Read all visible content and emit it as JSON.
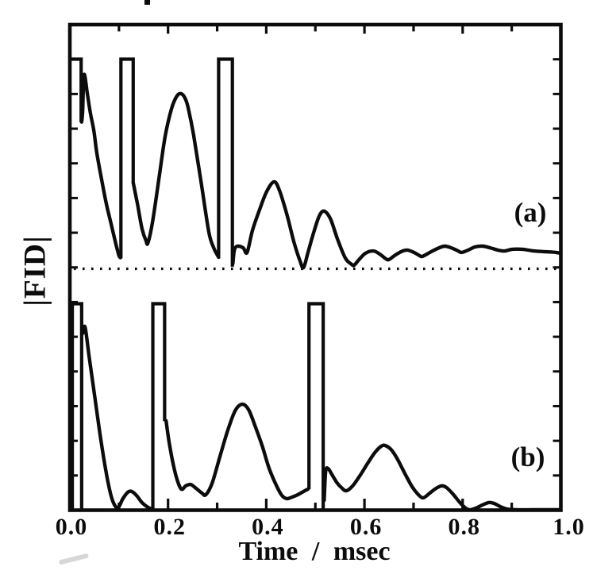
{
  "figure": {
    "kind": "scanned line figure, black ink on white paper",
    "ink_color": "#0c0c0c",
    "paper_color": "#ffffff"
  },
  "chart_data": {
    "type": "line",
    "title": "",
    "xlabel": "Time / msec",
    "ylabel": "|FID|",
    "xlim": [
      0.0,
      1.0
    ],
    "x_ticks_major": [
      0.0,
      0.2,
      0.4,
      0.6,
      0.8,
      1.0
    ],
    "x_ticks_minor": [
      0.1,
      0.3,
      0.5,
      0.7,
      0.9
    ],
    "x_tick_labels": [
      "0.0",
      "0.2",
      "0.4",
      "0.6",
      "0.8",
      "1.0"
    ],
    "y_axis": {
      "labeled": false,
      "divisions": 14
    },
    "grid": false,
    "legend": "none",
    "units": {
      "x": "msec",
      "y": "|FID| magnitude, normalized so pulse rectangles = 1.0"
    },
    "panels": [
      {
        "label": "(a)",
        "baseline": "dotted",
        "pulse_height": 1.0,
        "pulses": [
          {
            "t0": 0.0,
            "t1": 0.023,
            "left_edge_amp": null,
            "right_edge_amp": 0.7
          },
          {
            "t0": 0.104,
            "t1": 0.129,
            "left_edge_amp": 0.05,
            "right_edge_amp": 0.41
          },
          {
            "t0": 0.303,
            "t1": 0.331,
            "left_edge_amp": 0.06,
            "right_edge_amp": 0.01
          }
        ],
        "echo_peaks": [
          {
            "t": 0.227,
            "amp": 0.84
          },
          {
            "t": 0.416,
            "amp": 0.42
          },
          {
            "t": 0.518,
            "amp": 0.28
          }
        ],
        "curve_segments": [
          [
            [
              0.024,
              0.7
            ],
            [
              0.026,
              0.752
            ],
            [
              0.029,
              0.926
            ],
            [
              0.036,
              0.828
            ],
            [
              0.042,
              0.74
            ],
            [
              0.049,
              0.657
            ],
            [
              0.055,
              0.551
            ],
            [
              0.065,
              0.422
            ],
            [
              0.074,
              0.313
            ],
            [
              0.084,
              0.214
            ],
            [
              0.094,
              0.116
            ],
            [
              0.1,
              0.063
            ],
            [
              0.103,
              0.053
            ]
          ],
          [
            [
              0.129,
              0.411
            ],
            [
              0.138,
              0.305
            ],
            [
              0.147,
              0.191
            ],
            [
              0.155,
              0.134
            ],
            [
              0.159,
              0.123
            ],
            [
              0.168,
              0.218
            ],
            [
              0.181,
              0.422
            ],
            [
              0.194,
              0.631
            ],
            [
              0.207,
              0.763
            ],
            [
              0.218,
              0.824
            ],
            [
              0.227,
              0.835
            ],
            [
              0.235,
              0.812
            ],
            [
              0.241,
              0.767
            ],
            [
              0.252,
              0.638
            ],
            [
              0.267,
              0.419
            ],
            [
              0.283,
              0.176
            ],
            [
              0.293,
              0.1
            ],
            [
              0.301,
              0.063
            ],
            [
              0.303,
              0.055
            ]
          ],
          [
            [
              0.332,
              0.025
            ],
            [
              0.335,
              0.089
            ],
            [
              0.341,
              0.108
            ],
            [
              0.353,
              0.1
            ],
            [
              0.361,
              0.078
            ],
            [
              0.372,
              0.184
            ],
            [
              0.387,
              0.286
            ],
            [
              0.401,
              0.369
            ],
            [
              0.416,
              0.415
            ],
            [
              0.427,
              0.373
            ],
            [
              0.442,
              0.259
            ],
            [
              0.456,
              0.131
            ],
            [
              0.469,
              0.036
            ],
            [
              0.476,
              0.006
            ],
            [
              0.485,
              0.078
            ],
            [
              0.497,
              0.176
            ],
            [
              0.508,
              0.252
            ],
            [
              0.518,
              0.275
            ],
            [
              0.531,
              0.237
            ],
            [
              0.545,
              0.142
            ],
            [
              0.561,
              0.051
            ],
            [
              0.574,
              0.021
            ],
            [
              0.579,
              0.017
            ],
            [
              0.589,
              0.044
            ],
            [
              0.602,
              0.074
            ],
            [
              0.618,
              0.085
            ],
            [
              0.631,
              0.07
            ],
            [
              0.644,
              0.047
            ],
            [
              0.65,
              0.044
            ],
            [
              0.663,
              0.066
            ],
            [
              0.678,
              0.085
            ],
            [
              0.688,
              0.089
            ],
            [
              0.701,
              0.078
            ],
            [
              0.712,
              0.063
            ],
            [
              0.718,
              0.059
            ],
            [
              0.733,
              0.078
            ],
            [
              0.749,
              0.097
            ],
            [
              0.764,
              0.108
            ],
            [
              0.78,
              0.097
            ],
            [
              0.791,
              0.085
            ],
            [
              0.798,
              0.078
            ],
            [
              0.811,
              0.089
            ],
            [
              0.825,
              0.104
            ],
            [
              0.841,
              0.108
            ],
            [
              0.856,
              0.1
            ],
            [
              0.872,
              0.089
            ],
            [
              0.885,
              0.085
            ],
            [
              0.901,
              0.093
            ],
            [
              0.922,
              0.093
            ],
            [
              0.945,
              0.085
            ],
            [
              0.971,
              0.081
            ],
            [
              0.99,
              0.078
            ],
            [
              1.0,
              0.074
            ]
          ]
        ]
      },
      {
        "label": "(b)",
        "baseline": "axis",
        "pulse_height": 1.0,
        "pulses": [
          {
            "t0": 0.005,
            "t1": 0.024,
            "left_edge_amp": 0.0,
            "right_edge_amp": 0.0
          },
          {
            "t0": 0.169,
            "t1": 0.193,
            "left_edge_amp": 0.0,
            "right_edge_amp": 0.43
          },
          {
            "t0": 0.487,
            "t1": 0.516,
            "left_edge_amp": 0.1,
            "right_edge_amp": 0.0
          }
        ],
        "echo_peaks": [
          {
            "t": 0.351,
            "amp": 0.51
          },
          {
            "t": 0.642,
            "amp": 0.31
          }
        ],
        "curve_segments": [
          [
            [
              0.026,
              0.856
            ],
            [
              0.031,
              0.886
            ],
            [
              0.039,
              0.748
            ],
            [
              0.049,
              0.578
            ],
            [
              0.061,
              0.374
            ],
            [
              0.073,
              0.193
            ],
            [
              0.083,
              0.077
            ],
            [
              0.091,
              0.023
            ],
            [
              0.099,
              0.012
            ],
            [
              0.108,
              0.054
            ],
            [
              0.118,
              0.085
            ],
            [
              0.126,
              0.089
            ],
            [
              0.136,
              0.069
            ],
            [
              0.147,
              0.035
            ],
            [
              0.159,
              0.012
            ],
            [
              0.167,
              0.004
            ]
          ],
          [
            [
              0.196,
              0.432
            ],
            [
              0.202,
              0.331
            ],
            [
              0.21,
              0.227
            ],
            [
              0.218,
              0.15
            ],
            [
              0.227,
              0.1
            ],
            [
              0.236,
              0.116
            ],
            [
              0.246,
              0.123
            ],
            [
              0.257,
              0.104
            ],
            [
              0.269,
              0.081
            ],
            [
              0.277,
              0.073
            ],
            [
              0.29,
              0.131
            ],
            [
              0.306,
              0.262
            ],
            [
              0.322,
              0.389
            ],
            [
              0.337,
              0.482
            ],
            [
              0.351,
              0.512
            ],
            [
              0.364,
              0.486
            ],
            [
              0.377,
              0.408
            ],
            [
              0.392,
              0.308
            ],
            [
              0.406,
              0.2
            ],
            [
              0.421,
              0.116
            ],
            [
              0.432,
              0.069
            ],
            [
              0.442,
              0.054
            ],
            [
              0.453,
              0.062
            ],
            [
              0.464,
              0.073
            ],
            [
              0.476,
              0.089
            ],
            [
              0.485,
              0.1
            ]
          ],
          [
            [
              0.518,
              0.046
            ],
            [
              0.521,
              0.185
            ],
            [
              0.526,
              0.2
            ],
            [
              0.534,
              0.17
            ],
            [
              0.544,
              0.131
            ],
            [
              0.553,
              0.108
            ],
            [
              0.563,
              0.092
            ],
            [
              0.576,
              0.116
            ],
            [
              0.591,
              0.166
            ],
            [
              0.607,
              0.227
            ],
            [
              0.621,
              0.277
            ],
            [
              0.634,
              0.308
            ],
            [
              0.642,
              0.312
            ],
            [
              0.654,
              0.293
            ],
            [
              0.667,
              0.247
            ],
            [
              0.683,
              0.173
            ],
            [
              0.697,
              0.112
            ],
            [
              0.71,
              0.073
            ],
            [
              0.72,
              0.058
            ],
            [
              0.733,
              0.081
            ],
            [
              0.746,
              0.104
            ],
            [
              0.757,
              0.116
            ],
            [
              0.767,
              0.108
            ],
            [
              0.78,
              0.077
            ],
            [
              0.793,
              0.039
            ],
            [
              0.804,
              0.012
            ],
            [
              0.814,
              0.0
            ],
            [
              0.827,
              0.008
            ],
            [
              0.84,
              0.023
            ],
            [
              0.853,
              0.035
            ],
            [
              0.864,
              0.031
            ],
            [
              0.877,
              0.015
            ],
            [
              0.89,
              0.004
            ],
            [
              0.909,
              0.0
            ],
            [
              0.942,
              0.0
            ],
            [
              0.974,
              0.0
            ],
            [
              1.0,
              0.0
            ]
          ]
        ]
      }
    ]
  },
  "scan_artifacts": [
    {
      "name": "ink-speck-top-edge"
    },
    {
      "name": "faint-smudge-below-axis"
    }
  ]
}
